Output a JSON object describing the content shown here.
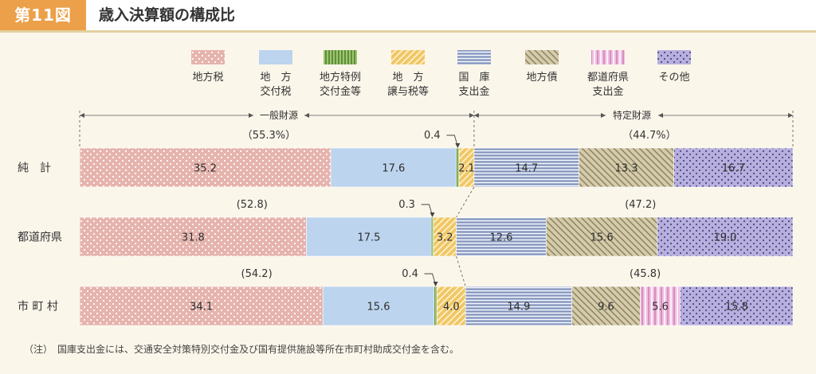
{
  "header": {
    "figure_no": "第11図",
    "title": "歳入決算額の構成比"
  },
  "colors": {
    "header_accent": "#eba049",
    "chiho_zei": "#e6b3ad",
    "kofu_zei": "#bcd4ee",
    "tokurei": "#9fc46f",
    "joyo_zei": "#f0c766",
    "kokko": "#a7b6d4",
    "chiho_sai": "#d3cbab",
    "todofuken": "#f0bfe0",
    "sonota": "#b7b0dd"
  },
  "legend": [
    {
      "key": "chiho_zei",
      "line1": "地方税",
      "line2": ""
    },
    {
      "key": "kofu_zei",
      "line1": "地　方",
      "line2": "交付税"
    },
    {
      "key": "tokurei",
      "line1": "地方特例",
      "line2": "交付金等"
    },
    {
      "key": "joyo_zei",
      "line1": "地　方",
      "line2": "譲与税等"
    },
    {
      "key": "kokko",
      "line1": "国　庫",
      "line2": "支出金"
    },
    {
      "key": "chiho_sai",
      "line1": "地方債",
      "line2": ""
    },
    {
      "key": "todofuken",
      "line1": "都道府県",
      "line2": "支出金"
    },
    {
      "key": "sonota",
      "line1": "その他",
      "line2": ""
    }
  ],
  "sections": {
    "general": "一般財源",
    "specific": "特定財源"
  },
  "chart_data": {
    "type": "bar",
    "orientation": "horizontal",
    "stacked": true,
    "unit": "%",
    "categories": [
      "純　計",
      "都道府県",
      "市 町 村"
    ],
    "series": [
      {
        "name": "地方税",
        "key": "chiho_zei",
        "values": [
          35.2,
          31.8,
          34.1
        ]
      },
      {
        "name": "地方交付税",
        "key": "kofu_zei",
        "values": [
          17.6,
          17.5,
          15.6
        ]
      },
      {
        "name": "地方特例交付金等",
        "key": "tokurei",
        "values": [
          0.4,
          0.3,
          0.4
        ]
      },
      {
        "name": "地方譲与税等",
        "key": "joyo_zei",
        "values": [
          2.1,
          3.2,
          4.0
        ]
      },
      {
        "name": "国庫支出金",
        "key": "kokko",
        "values": [
          14.7,
          12.6,
          14.9
        ]
      },
      {
        "name": "地方債",
        "key": "chiho_sai",
        "values": [
          13.3,
          15.6,
          9.6
        ]
      },
      {
        "name": "都道府県支出金",
        "key": "todofuken",
        "values": [
          0,
          0,
          5.6
        ]
      },
      {
        "name": "その他",
        "key": "sonota",
        "values": [
          16.7,
          19.0,
          15.8
        ]
      }
    ],
    "bar_labels": [
      [
        "35.2",
        "17.6",
        "",
        "2.1",
        "14.7",
        "13.3",
        "",
        "16.7"
      ],
      [
        "31.8",
        "17.5",
        "",
        "3.2",
        "12.6",
        "15.6",
        "",
        "19.0"
      ],
      [
        "34.1",
        "15.6",
        "",
        "4.0",
        "14.9",
        "9.6",
        "5.6",
        "15.8"
      ]
    ],
    "callouts": [
      "0.4",
      "0.3",
      "0.4"
    ],
    "general_share_labels": [
      "（55.3%）",
      "(52.8)",
      "(54.2)"
    ],
    "specific_share_labels": [
      "（44.7%）",
      "(47.2)",
      "(45.8)"
    ]
  },
  "note": "（注）　国庫支出金には、交通安全対策特別交付金及び国有提供施設等所在市町村助成交付金を含む。"
}
